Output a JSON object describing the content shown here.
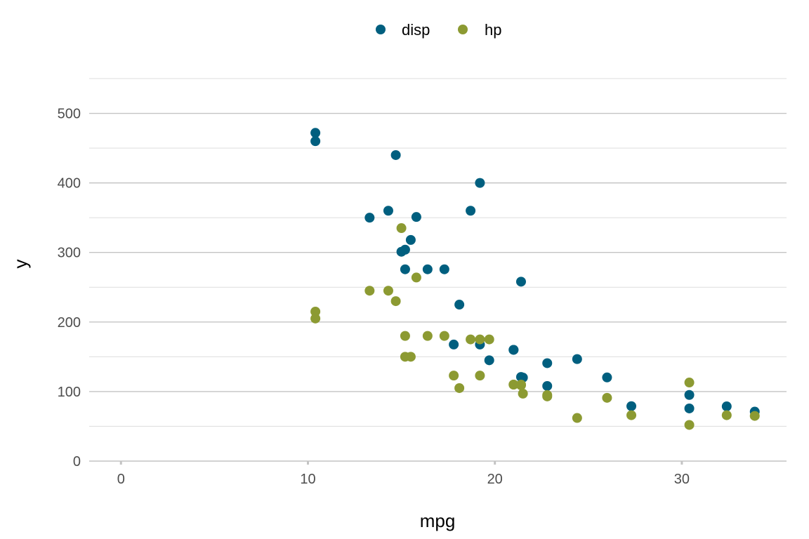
{
  "chart_data": {
    "type": "scatter",
    "xlabel": "mpg",
    "ylabel": "y",
    "xlim": [
      -1.7,
      35.6
    ],
    "ylim": [
      0,
      552
    ],
    "x_ticks": [
      0,
      10,
      20,
      30
    ],
    "y_ticks": [
      0,
      100,
      200,
      300,
      400,
      500
    ],
    "grid": true,
    "legend_position": "top",
    "x": [
      21.0,
      21.0,
      22.8,
      21.4,
      18.7,
      18.1,
      14.3,
      24.4,
      22.8,
      19.2,
      17.8,
      16.4,
      17.3,
      15.2,
      10.4,
      10.4,
      14.7,
      32.4,
      30.4,
      33.9,
      21.5,
      15.5,
      15.2,
      13.3,
      19.2,
      27.3,
      26.0,
      30.4,
      15.8,
      19.7,
      15.0,
      21.4
    ],
    "series": [
      {
        "name": "disp",
        "color": "#005f7f",
        "values": [
          160.0,
          160.0,
          108.0,
          258.0,
          360.0,
          225.0,
          360.0,
          146.7,
          140.8,
          167.6,
          167.6,
          275.8,
          275.8,
          275.8,
          472.0,
          460.0,
          440.0,
          78.7,
          75.7,
          71.1,
          120.1,
          318.0,
          304.0,
          350.0,
          400.0,
          79.0,
          120.3,
          95.1,
          351.0,
          145.0,
          301.0,
          121.0
        ]
      },
      {
        "name": "hp",
        "color": "#8c9a32",
        "values": [
          110,
          110,
          93,
          110,
          175,
          105,
          245,
          62,
          95,
          123,
          123,
          180,
          180,
          180,
          205,
          215,
          230,
          66,
          52,
          65,
          97,
          150,
          150,
          245,
          175,
          66,
          91,
          113,
          264,
          175,
          335,
          109
        ]
      }
    ]
  }
}
